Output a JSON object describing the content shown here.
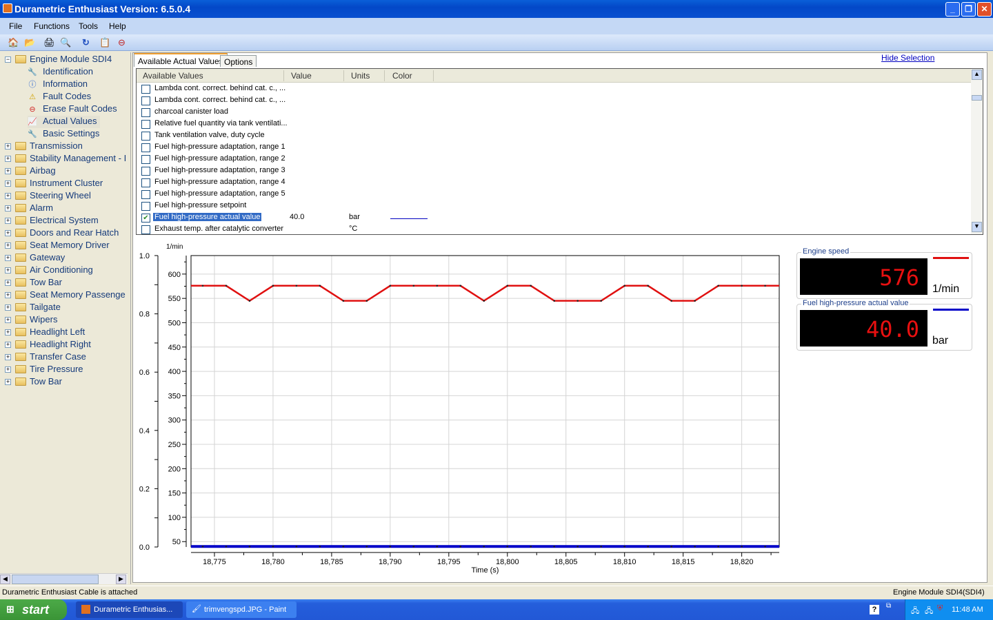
{
  "window": {
    "title": "Durametric Enthusiast Version: 6.5.0.4",
    "minimize": "_",
    "restore": "❐",
    "close": "✕"
  },
  "menu": [
    "File",
    "Functions",
    "Tools",
    "Help"
  ],
  "toolbar": {
    "icons": [
      "home-icon",
      "open-icon",
      "print-icon",
      "print-preview-icon",
      "refresh-icon",
      "clipboard-check-icon",
      "delete-document-icon"
    ]
  },
  "tree": {
    "root": "Engine Module SDI4",
    "children": [
      {
        "label": "Identification",
        "icon": "wrench-icon"
      },
      {
        "label": "Information",
        "icon": "info-icon"
      },
      {
        "label": "Fault Codes",
        "icon": "warning-icon"
      },
      {
        "label": "Erase Fault Codes",
        "icon": "erase-icon"
      },
      {
        "label": "Actual Values",
        "icon": "chart-icon"
      },
      {
        "label": "Basic Settings",
        "icon": "wrench-icon"
      }
    ],
    "modules": [
      "Transmission",
      "Stability Management - I",
      "Airbag",
      "Instrument Cluster",
      "Steering Wheel",
      "Alarm",
      "Electrical System",
      "Doors and Rear Hatch",
      "Seat Memory Driver",
      "Gateway",
      "Air Conditioning",
      "Tow Bar",
      "Seat Memory Passenge",
      "Tailgate",
      "Wipers",
      "Headlight Left",
      "Headlight Right",
      "Transfer Case",
      "Tire Pressure",
      "Tow Bar"
    ]
  },
  "tabs": [
    "Available Actual Values",
    "Options"
  ],
  "hide_selection": "Hide Selection",
  "list": {
    "headers": [
      "Available Values",
      "Value",
      "Units",
      "Color"
    ],
    "rows": [
      {
        "label": "Lambda cont. correct. behind cat. c., ...",
        "checked": false,
        "value": "",
        "units": ""
      },
      {
        "label": "Lambda cont. correct. behind cat. c., ...",
        "checked": false,
        "value": "",
        "units": ""
      },
      {
        "label": "charcoal canister load",
        "checked": false,
        "value": "",
        "units": ""
      },
      {
        "label": "Relative fuel quantity via tank ventilati...",
        "checked": false,
        "value": "",
        "units": ""
      },
      {
        "label": "Tank ventilation valve, duty cycle",
        "checked": false,
        "value": "",
        "units": ""
      },
      {
        "label": "Fuel high-pressure adaptation, range 1",
        "checked": false,
        "value": "",
        "units": ""
      },
      {
        "label": "Fuel high-pressure adaptation, range 2",
        "checked": false,
        "value": "",
        "units": ""
      },
      {
        "label": "Fuel high-pressure adaptation, range 3",
        "checked": false,
        "value": "",
        "units": ""
      },
      {
        "label": "Fuel high-pressure adaptation, range 4",
        "checked": false,
        "value": "",
        "units": ""
      },
      {
        "label": "Fuel high-pressure adaptation, range 5",
        "checked": false,
        "value": "",
        "units": ""
      },
      {
        "label": "Fuel high-pressure setpoint",
        "checked": false,
        "value": "",
        "units": ""
      },
      {
        "label": "Fuel high-pressure actual value",
        "checked": true,
        "value": "40.0",
        "units": "bar",
        "color": "#0000c0",
        "selected": true
      },
      {
        "label": "Exhaust temp. after catalytic converter",
        "checked": false,
        "value": "",
        "units": "°C"
      }
    ]
  },
  "chart_data": {
    "type": "line",
    "xlabel": "Time (s)",
    "ylabel_right": "1/min",
    "xlim": [
      18773,
      18823.2
    ],
    "xticks": [
      "18,775",
      "18,780",
      "18,785",
      "18,790",
      "18,795",
      "18,800",
      "18,805",
      "18,810",
      "18,815",
      "18,820"
    ],
    "xtick_values": [
      18775,
      18780,
      18785,
      18790,
      18795,
      18800,
      18805,
      18810,
      18815,
      18820
    ],
    "left_axis": {
      "ylim": [
        0,
        1
      ],
      "ticks": [
        "0.0",
        "0.2",
        "0.4",
        "0.6",
        "0.8",
        "1.0"
      ]
    },
    "right_axis": {
      "ylim": [
        39,
        638
      ],
      "ticks": [
        "50",
        "100",
        "150",
        "200",
        "250",
        "300",
        "350",
        "400",
        "450",
        "500",
        "550",
        "600"
      ]
    },
    "grid": true,
    "x": [
      18774,
      18776,
      18778,
      18780,
      18782,
      18784,
      18786,
      18788,
      18790,
      18792,
      18794,
      18796,
      18798,
      18800,
      18802,
      18804,
      18806,
      18808,
      18810,
      18812,
      18814,
      18816,
      18818,
      18820,
      18822
    ],
    "series": [
      {
        "name": "Engine speed",
        "color": "#e01010",
        "values": [
          576,
          576,
          545,
          576,
          576,
          576,
          545,
          545,
          576,
          576,
          576,
          576,
          545,
          576,
          576,
          545,
          545,
          545,
          576,
          576,
          545,
          545,
          576,
          576,
          576
        ]
      },
      {
        "name": "Fuel high-pressure actual value",
        "color": "#0000c8",
        "values": [
          40,
          40,
          40,
          40,
          40,
          40,
          40,
          40,
          40,
          40,
          40,
          40,
          40,
          40,
          40,
          40,
          40,
          40,
          40,
          40,
          40,
          40,
          40,
          40,
          40
        ]
      }
    ]
  },
  "gauges": [
    {
      "label": "Engine speed",
      "value": "576",
      "unit": "1/min",
      "color": "#e01010"
    },
    {
      "label": "Fuel high-pressure actual value",
      "value": "40.0",
      "unit": "bar",
      "color": "#0000c8"
    }
  ],
  "status": {
    "left": "Durametric Enthusiast Cable is attached",
    "right": "Engine Module SDI4(SDI4)"
  },
  "taskbar": {
    "start": "start",
    "tasks": [
      "Durametric Enthusias...",
      "trimvengspd.JPG - Paint"
    ],
    "clock": "11:48 AM"
  }
}
